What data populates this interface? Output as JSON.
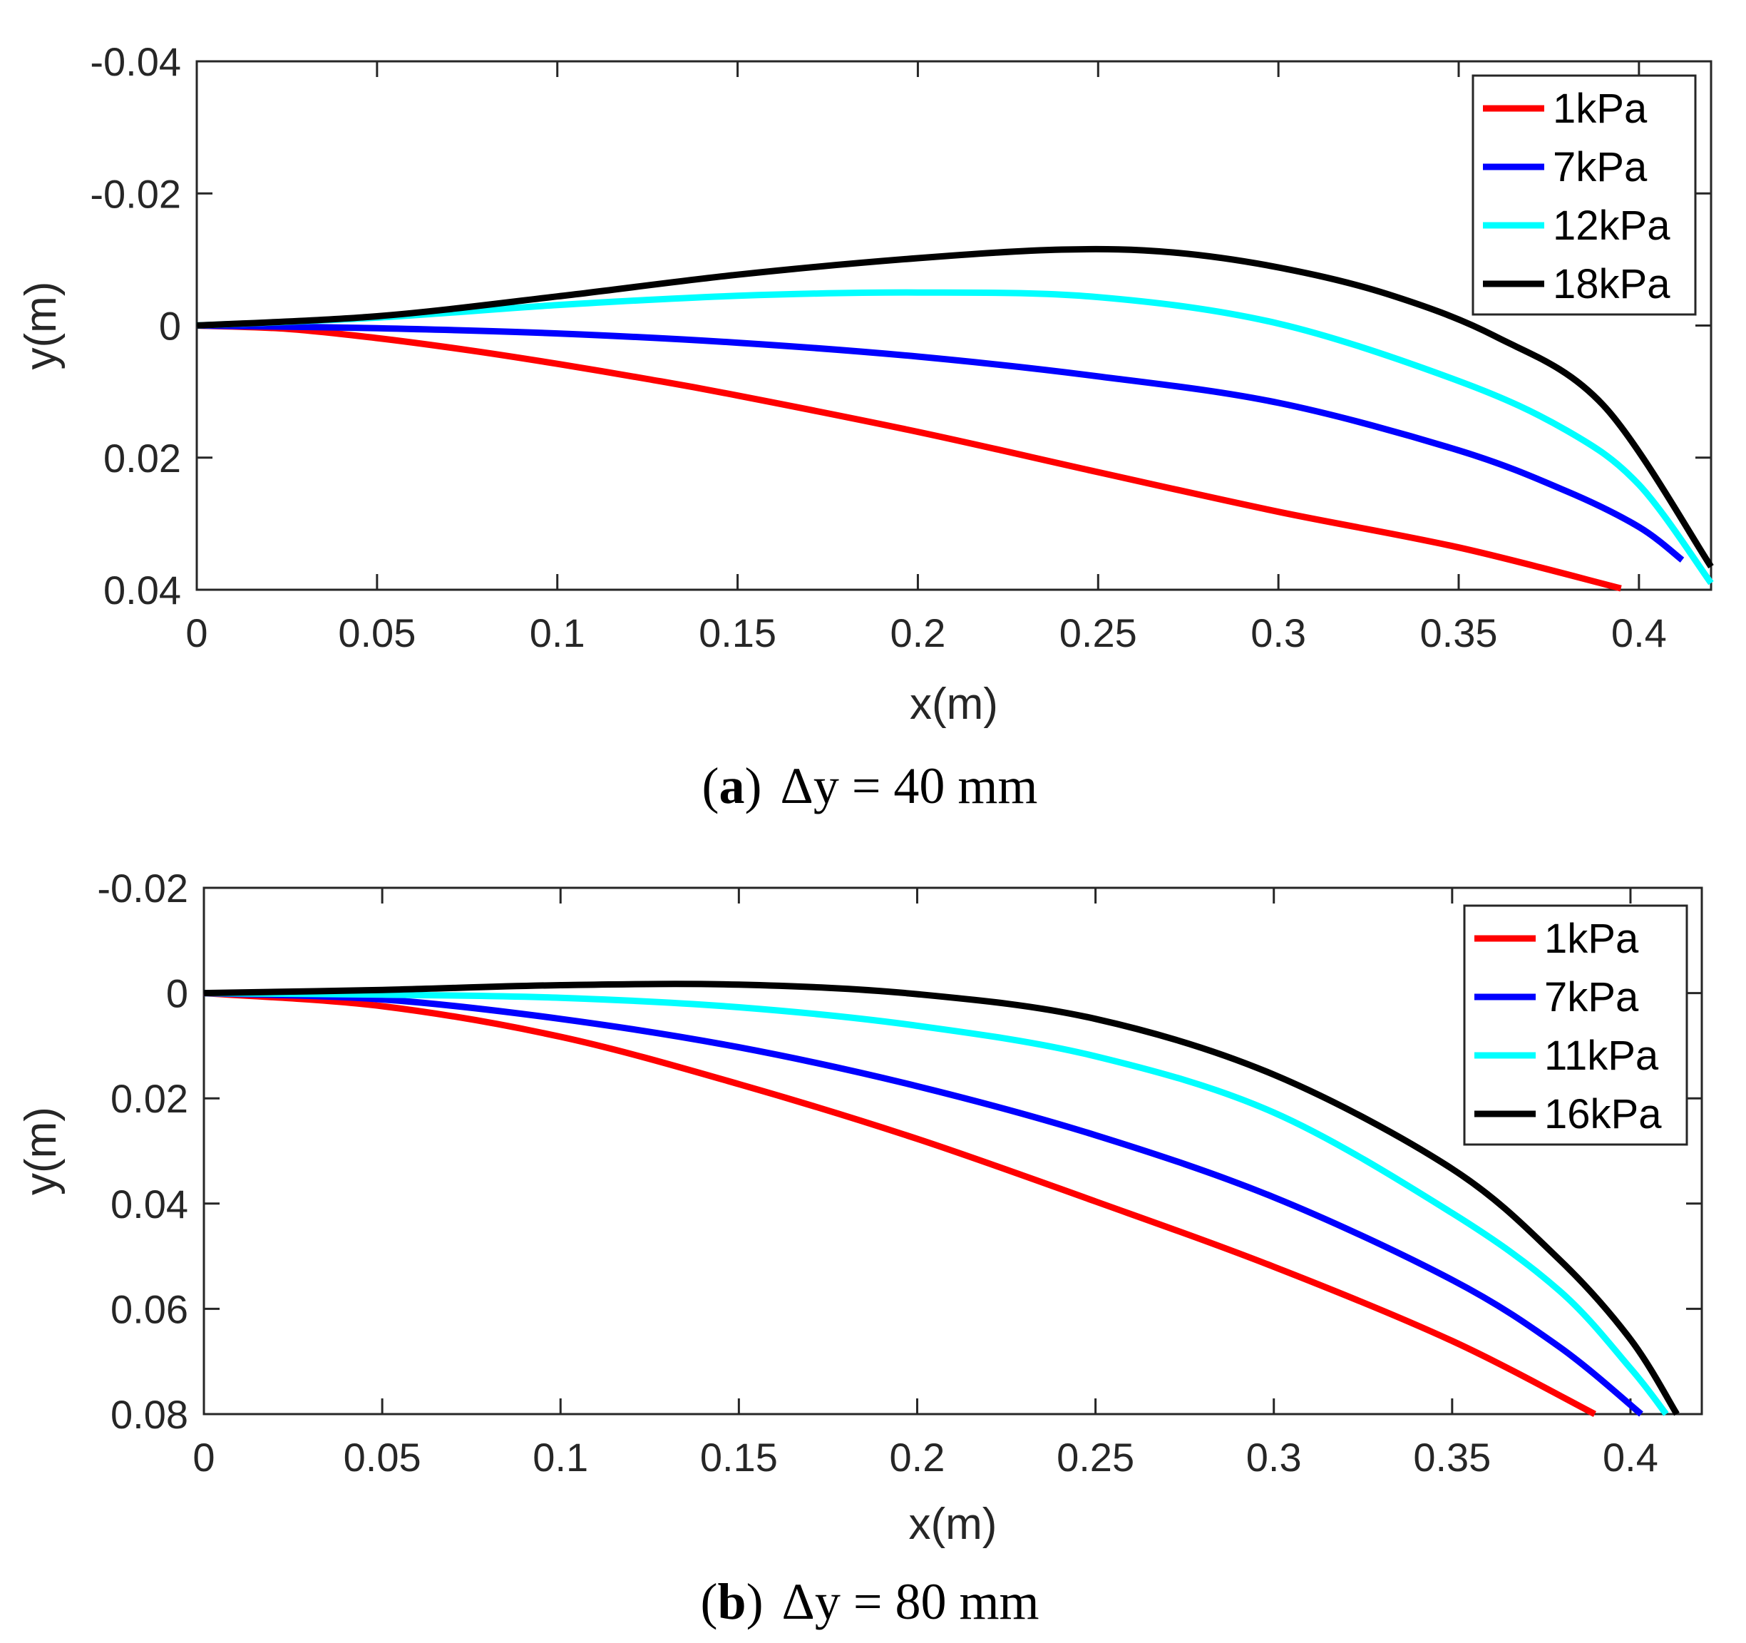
{
  "chart_data": [
    {
      "type": "line",
      "panel": "a",
      "caption": {
        "open": "(",
        "letter": "a",
        "close": ")",
        "text": "Δy = 40 mm"
      },
      "xlabel": "x(m)",
      "ylabel": "y(m)",
      "xlim": [
        0,
        0.42
      ],
      "ylim": [
        -0.04,
        0.04
      ],
      "y_reversed": true,
      "xticks": [
        0,
        0.05,
        0.1,
        0.15,
        0.2,
        0.25,
        0.3,
        0.35,
        0.4
      ],
      "xtick_labels": [
        "0",
        "0.05",
        "0.1",
        "0.15",
        "0.2",
        "0.25",
        "0.3",
        "0.35",
        "0.4"
      ],
      "yticks": [
        -0.04,
        -0.02,
        0,
        0.02,
        0.04
      ],
      "ytick_labels": [
        "-0.04",
        "-0.02",
        "0",
        "0.02",
        "0.04"
      ],
      "grid": false,
      "legend_position": "top-right",
      "series": [
        {
          "name": "1kPa",
          "color": "#ff0000",
          "x": [
            0,
            0.025,
            0.05,
            0.075,
            0.1,
            0.125,
            0.15,
            0.2,
            0.25,
            0.3,
            0.35,
            0.395
          ],
          "y": [
            0,
            0.0005,
            0.0019,
            0.0037,
            0.0058,
            0.0081,
            0.0106,
            0.0161,
            0.0222,
            0.0282,
            0.0336,
            0.0398
          ]
        },
        {
          "name": "7kPa",
          "color": "#0000ff",
          "x": [
            0,
            0.05,
            0.1,
            0.15,
            0.2,
            0.25,
            0.3,
            0.35,
            0.38,
            0.4,
            0.412
          ],
          "y": [
            0,
            0.0004,
            0.0012,
            0.0026,
            0.0047,
            0.0077,
            0.0117,
            0.0189,
            0.0251,
            0.0305,
            0.0355
          ]
        },
        {
          "name": "12kPa",
          "color": "#00ffff",
          "x": [
            0,
            0.05,
            0.1,
            0.15,
            0.2,
            0.25,
            0.3,
            0.35,
            0.38,
            0.4,
            0.42
          ],
          "y": [
            0,
            -0.0012,
            -0.0031,
            -0.0045,
            -0.005,
            -0.0043,
            -0.0003,
            0.0084,
            0.0159,
            0.0241,
            0.039
          ]
        },
        {
          "name": "18kPa",
          "color": "#000000",
          "x": [
            0,
            0.05,
            0.1,
            0.15,
            0.2,
            0.24,
            0.27,
            0.3,
            0.33,
            0.36,
            0.39,
            0.42
          ],
          "y": [
            0,
            -0.0014,
            -0.0044,
            -0.0077,
            -0.0102,
            -0.0115,
            -0.0111,
            -0.0088,
            -0.0048,
            0.0016,
            0.012,
            0.0365
          ]
        }
      ]
    },
    {
      "type": "line",
      "panel": "b",
      "caption": {
        "open": "(",
        "letter": "b",
        "close": ")",
        "text": "Δy = 80 mm"
      },
      "xlabel": "x(m)",
      "ylabel": "y(m)",
      "xlim": [
        0,
        0.42
      ],
      "ylim": [
        -0.02,
        0.08
      ],
      "y_reversed": true,
      "xticks": [
        0,
        0.05,
        0.1,
        0.15,
        0.2,
        0.25,
        0.3,
        0.35,
        0.4
      ],
      "xtick_labels": [
        "0",
        "0.05",
        "0.1",
        "0.15",
        "0.2",
        "0.25",
        "0.3",
        "0.35",
        "0.4"
      ],
      "yticks": [
        -0.02,
        0,
        0.02,
        0.04,
        0.06,
        0.08
      ],
      "ytick_labels": [
        "-0.02",
        "0",
        "0.02",
        "0.04",
        "0.06",
        "0.08"
      ],
      "grid": false,
      "legend_position": "top-right",
      "series": [
        {
          "name": "1kPa",
          "color": "#ff0000",
          "x": [
            0,
            0.05,
            0.1,
            0.15,
            0.2,
            0.25,
            0.3,
            0.35,
            0.39
          ],
          "y": [
            0,
            0.0025,
            0.0083,
            0.0173,
            0.0277,
            0.0396,
            0.052,
            0.0661,
            0.08
          ]
        },
        {
          "name": "7kPa",
          "color": "#0000ff",
          "x": [
            0,
            0.05,
            0.1,
            0.15,
            0.2,
            0.25,
            0.3,
            0.35,
            0.38,
            0.403
          ],
          "y": [
            0,
            0.0012,
            0.0049,
            0.0103,
            0.0177,
            0.027,
            0.0388,
            0.0545,
            0.0672,
            0.08
          ]
        },
        {
          "name": "11kPa",
          "color": "#00ffff",
          "x": [
            0,
            0.05,
            0.1,
            0.15,
            0.2,
            0.25,
            0.3,
            0.35,
            0.38,
            0.4,
            0.41
          ],
          "y": [
            0,
            0.0003,
            0.0009,
            0.0027,
            0.0062,
            0.012,
            0.0227,
            0.0418,
            0.0565,
            0.0713,
            0.08
          ]
        },
        {
          "name": "16kPa",
          "color": "#000000",
          "x": [
            0,
            0.05,
            0.1,
            0.15,
            0.2,
            0.25,
            0.3,
            0.35,
            0.38,
            0.4,
            0.413
          ],
          "y": [
            0,
            -0.0006,
            -0.0015,
            -0.0016,
            0.0002,
            0.0049,
            0.0155,
            0.0334,
            0.0506,
            0.0658,
            0.08
          ]
        }
      ]
    }
  ]
}
